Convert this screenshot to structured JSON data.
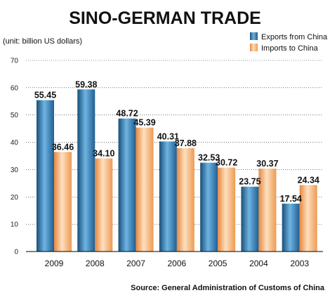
{
  "chart_data": {
    "type": "bar",
    "title": "SINO-GERMAN TRADE",
    "unit_note": "(unit: billion US dollars)",
    "categories": [
      "2009",
      "2008",
      "2007",
      "2006",
      "2005",
      "2004",
      "2003"
    ],
    "series": [
      {
        "name": "Exports from China",
        "values": [
          55.45,
          59.38,
          48.72,
          40.31,
          32.53,
          23.75,
          17.54
        ],
        "labels": [
          "55.45",
          "59.38",
          "48.72",
          "40.31",
          "32.53",
          "23.75",
          "17.54"
        ],
        "color": "#2f7fb5"
      },
      {
        "name": "Imports to China",
        "values": [
          36.46,
          34.1,
          45.39,
          37.88,
          30.72,
          30.37,
          24.34
        ],
        "labels": [
          "36.46",
          "34.10",
          "45.39",
          "37.88",
          "30.72",
          "30.37",
          "24.34"
        ],
        "color": "#f5a564"
      }
    ],
    "ylim": [
      0,
      70
    ],
    "yticks": [
      "0",
      "10",
      "20",
      "30",
      "40",
      "50",
      "60",
      "70"
    ],
    "grid": true,
    "legend_position": "top-right",
    "source": "Source: General Administration of Customs of China"
  }
}
